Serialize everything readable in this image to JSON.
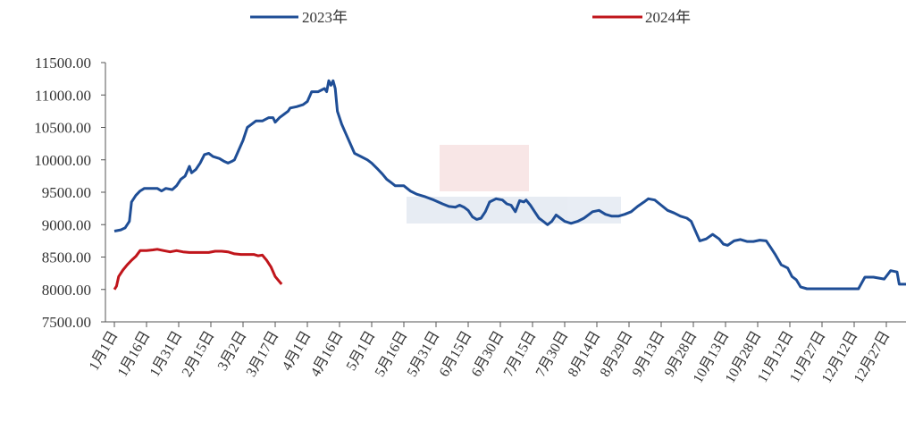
{
  "chart_data": {
    "type": "line",
    "title": "",
    "xlabel": "",
    "ylabel": "",
    "ylim": [
      7500,
      11500
    ],
    "y_ticks": [
      "11500.00",
      "11000.00",
      "10500.00",
      "10000.00",
      "9500.00",
      "9000.00",
      "8500.00",
      "8000.00",
      "7500.00"
    ],
    "x_ticks": [
      "1月1日",
      "1月16日",
      "1月31日",
      "2月15日",
      "3月2日",
      "3月17日",
      "4月1日",
      "4月16日",
      "5月1日",
      "5月16日",
      "5月31日",
      "6月15日",
      "6月30日",
      "7月15日",
      "7月30日",
      "8月14日",
      "8月29日",
      "9月13日",
      "9月28日",
      "10月13日",
      "10月28日",
      "11月12日",
      "11月27日",
      "12月12日",
      "12月27日"
    ],
    "legend": "top",
    "grid": false,
    "series": [
      {
        "name": "2023年",
        "color": "#1f4e96",
        "points": [
          [
            0,
            8900
          ],
          [
            3,
            8920
          ],
          [
            5,
            8950
          ],
          [
            7,
            9050
          ],
          [
            8,
            9350
          ],
          [
            10,
            9450
          ],
          [
            12,
            9520
          ],
          [
            14,
            9560
          ],
          [
            17,
            9560
          ],
          [
            20,
            9560
          ],
          [
            22,
            9520
          ],
          [
            24,
            9560
          ],
          [
            27,
            9540
          ],
          [
            29,
            9600
          ],
          [
            31,
            9700
          ],
          [
            33,
            9750
          ],
          [
            35,
            9900
          ],
          [
            36,
            9800
          ],
          [
            38,
            9850
          ],
          [
            40,
            9950
          ],
          [
            42,
            10080
          ],
          [
            44,
            10100
          ],
          [
            46,
            10050
          ],
          [
            49,
            10020
          ],
          [
            51,
            9980
          ],
          [
            53,
            9950
          ],
          [
            55,
            9980
          ],
          [
            56,
            10000
          ],
          [
            58,
            10150
          ],
          [
            60,
            10300
          ],
          [
            62,
            10500
          ],
          [
            64,
            10550
          ],
          [
            66,
            10600
          ],
          [
            69,
            10600
          ],
          [
            72,
            10650
          ],
          [
            74,
            10650
          ],
          [
            75,
            10580
          ],
          [
            77,
            10650
          ],
          [
            79,
            10700
          ],
          [
            81,
            10750
          ],
          [
            82,
            10800
          ],
          [
            85,
            10820
          ],
          [
            88,
            10850
          ],
          [
            90,
            10900
          ],
          [
            92,
            11050
          ],
          [
            95,
            11050
          ],
          [
            98,
            11100
          ],
          [
            99,
            11050
          ],
          [
            100,
            11220
          ],
          [
            101,
            11150
          ],
          [
            102,
            11220
          ],
          [
            103,
            11100
          ],
          [
            104,
            10750
          ],
          [
            106,
            10550
          ],
          [
            108,
            10400
          ],
          [
            110,
            10250
          ],
          [
            112,
            10100
          ],
          [
            115,
            10050
          ],
          [
            118,
            10000
          ],
          [
            120,
            9950
          ],
          [
            123,
            9850
          ],
          [
            125,
            9780
          ],
          [
            127,
            9700
          ],
          [
            129,
            9650
          ],
          [
            131,
            9600
          ],
          [
            135,
            9600
          ],
          [
            138,
            9520
          ],
          [
            141,
            9470
          ],
          [
            145,
            9430
          ],
          [
            149,
            9380
          ],
          [
            153,
            9320
          ],
          [
            156,
            9280
          ],
          [
            159,
            9270
          ],
          [
            161,
            9300
          ],
          [
            163,
            9270
          ],
          [
            165,
            9220
          ],
          [
            167,
            9120
          ],
          [
            169,
            9080
          ],
          [
            171,
            9100
          ],
          [
            173,
            9200
          ],
          [
            175,
            9350
          ],
          [
            178,
            9400
          ],
          [
            181,
            9380
          ],
          [
            183,
            9320
          ],
          [
            185,
            9300
          ],
          [
            187,
            9200
          ],
          [
            189,
            9370
          ],
          [
            191,
            9350
          ],
          [
            192,
            9380
          ],
          [
            194,
            9300
          ],
          [
            196,
            9200
          ],
          [
            198,
            9100
          ],
          [
            200,
            9050
          ],
          [
            202,
            9000
          ],
          [
            204,
            9050
          ],
          [
            206,
            9150
          ],
          [
            208,
            9100
          ],
          [
            210,
            9050
          ],
          [
            213,
            9020
          ],
          [
            216,
            9050
          ],
          [
            219,
            9100
          ],
          [
            221,
            9150
          ],
          [
            223,
            9200
          ],
          [
            226,
            9220
          ],
          [
            229,
            9160
          ],
          [
            232,
            9130
          ],
          [
            235,
            9130
          ],
          [
            238,
            9160
          ],
          [
            241,
            9200
          ],
          [
            244,
            9280
          ],
          [
            247,
            9350
          ],
          [
            249,
            9400
          ],
          [
            252,
            9380
          ],
          [
            255,
            9300
          ],
          [
            258,
            9220
          ],
          [
            261,
            9180
          ],
          [
            264,
            9130
          ],
          [
            267,
            9100
          ],
          [
            269,
            9050
          ],
          [
            271,
            8900
          ],
          [
            273,
            8750
          ],
          [
            276,
            8780
          ],
          [
            279,
            8850
          ],
          [
            282,
            8780
          ],
          [
            284,
            8700
          ],
          [
            286,
            8680
          ],
          [
            289,
            8750
          ],
          [
            292,
            8770
          ],
          [
            295,
            8740
          ],
          [
            298,
            8740
          ],
          [
            301,
            8760
          ],
          [
            304,
            8750
          ],
          [
            306,
            8650
          ],
          [
            308,
            8550
          ],
          [
            311,
            8380
          ],
          [
            314,
            8330
          ],
          [
            316,
            8200
          ],
          [
            318,
            8150
          ],
          [
            320,
            8040
          ],
          [
            323,
            8010
          ],
          [
            330,
            8010
          ],
          [
            340,
            8010
          ],
          [
            347,
            8010
          ],
          [
            350,
            8190
          ],
          [
            354,
            8190
          ],
          [
            359,
            8160
          ],
          [
            362,
            8290
          ],
          [
            365,
            8270
          ],
          [
            366,
            8080
          ],
          [
            370,
            8080
          ],
          [
            374,
            8070
          ],
          [
            377,
            7960
          ],
          [
            380,
            7900
          ],
          [
            383,
            7850
          ],
          [
            386,
            7800
          ],
          [
            389,
            7760
          ],
          [
            392,
            7770
          ],
          [
            394,
            7850
          ],
          [
            396,
            7820
          ],
          [
            398,
            7800
          ],
          [
            400,
            7850
          ],
          [
            403,
            7890
          ],
          [
            406,
            7900
          ],
          [
            410,
            7900
          ],
          [
            415,
            7920
          ]
        ]
      },
      {
        "name": "2024年",
        "color": "#c0151b",
        "points": [
          [
            0,
            8000
          ],
          [
            1,
            8050
          ],
          [
            2,
            8200
          ],
          [
            4,
            8300
          ],
          [
            6,
            8380
          ],
          [
            8,
            8450
          ],
          [
            10,
            8510
          ],
          [
            12,
            8600
          ],
          [
            15,
            8600
          ],
          [
            18,
            8610
          ],
          [
            20,
            8620
          ],
          [
            23,
            8600
          ],
          [
            26,
            8580
          ],
          [
            29,
            8600
          ],
          [
            32,
            8580
          ],
          [
            35,
            8570
          ],
          [
            38,
            8570
          ],
          [
            41,
            8570
          ],
          [
            44,
            8570
          ],
          [
            47,
            8590
          ],
          [
            50,
            8590
          ],
          [
            53,
            8580
          ],
          [
            56,
            8550
          ],
          [
            59,
            8540
          ],
          [
            62,
            8540
          ],
          [
            65,
            8540
          ],
          [
            67,
            8520
          ],
          [
            69,
            8530
          ],
          [
            71,
            8450
          ],
          [
            73,
            8350
          ],
          [
            75,
            8200
          ],
          [
            77,
            8120
          ],
          [
            78,
            8080
          ]
        ]
      }
    ]
  }
}
